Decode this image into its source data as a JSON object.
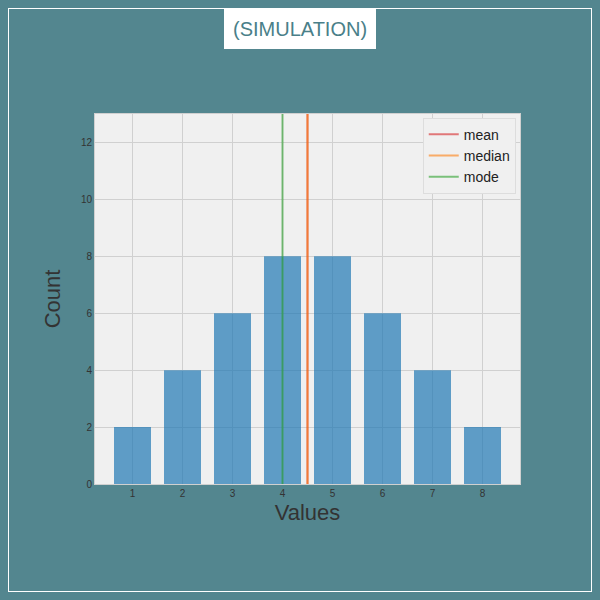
{
  "chart_data": {
    "type": "bar",
    "title": "(SIMULATION)",
    "x_label": "Values",
    "y_label": "Count",
    "x": [
      1,
      2,
      3,
      4,
      5,
      6,
      7,
      8
    ],
    "values": [
      2,
      4,
      6,
      8,
      8,
      6,
      4,
      2
    ],
    "color": "#1f77b4",
    "xlim": [
      0.25,
      8.75
    ],
    "xticks": [
      1,
      2,
      3,
      4,
      5,
      6,
      7,
      8
    ],
    "ylim": [
      0,
      13
    ],
    "yticks": [
      0,
      2,
      4,
      6,
      8,
      10,
      12
    ],
    "grid": true,
    "legend": "upper right",
    "lines": [
      {
        "name": "mean",
        "color": "#d62728",
        "x": 4.5
      },
      {
        "name": "median",
        "color": "#ff7f0e",
        "x": 4.5
      },
      {
        "name": "mode",
        "color": "#2ca02c",
        "x": 4
      }
    ]
  }
}
